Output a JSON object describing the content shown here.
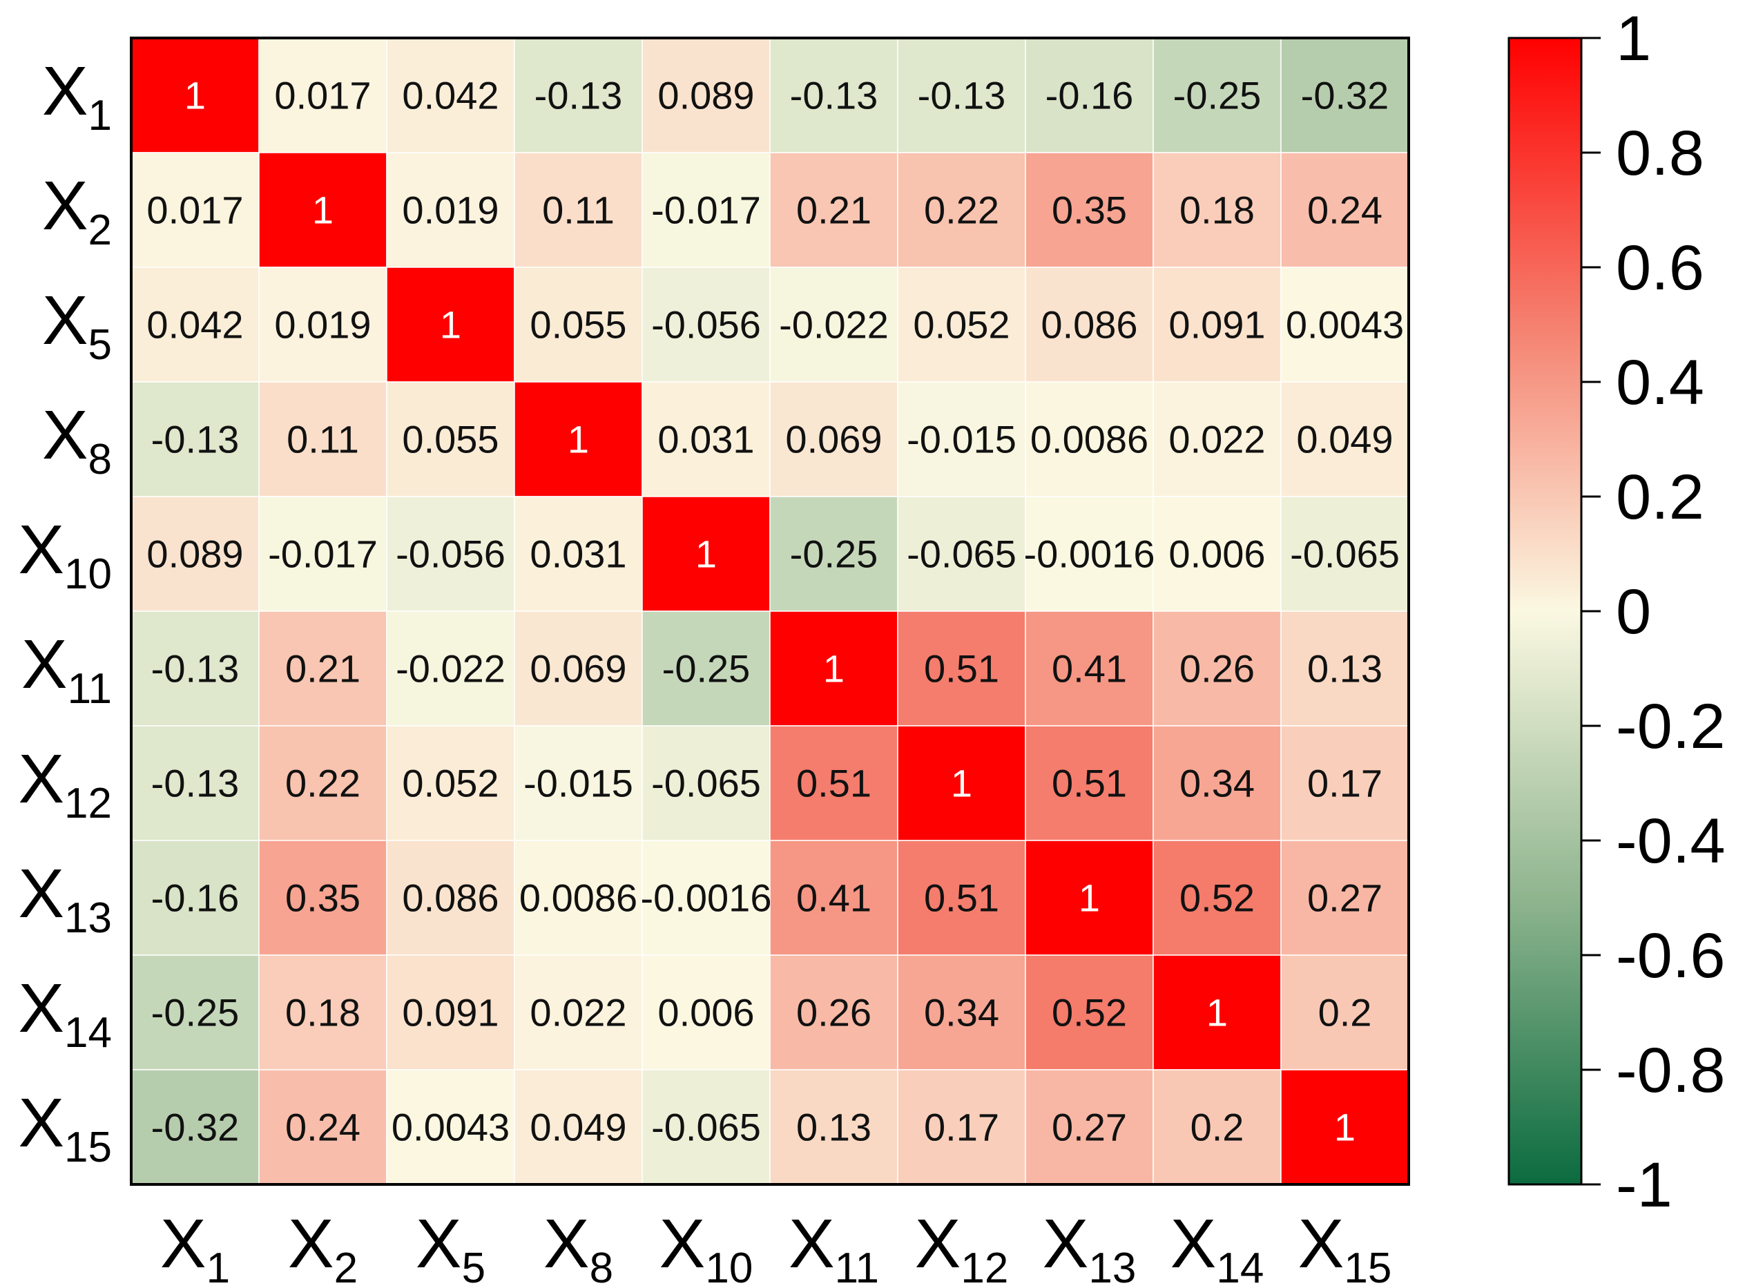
{
  "chart_data": {
    "type": "heatmap",
    "title": "",
    "xlabel": "",
    "ylabel": "",
    "labels": [
      {
        "base": "X",
        "sub": "1"
      },
      {
        "base": "X",
        "sub": "2"
      },
      {
        "base": "X",
        "sub": "5"
      },
      {
        "base": "X",
        "sub": "8"
      },
      {
        "base": "X",
        "sub": "10"
      },
      {
        "base": "X",
        "sub": "11"
      },
      {
        "base": "X",
        "sub": "12"
      },
      {
        "base": "X",
        "sub": "13"
      },
      {
        "base": "X",
        "sub": "14"
      },
      {
        "base": "X",
        "sub": "15"
      }
    ],
    "matrix": [
      [
        1,
        0.017,
        0.042,
        -0.13,
        0.089,
        -0.13,
        -0.13,
        -0.16,
        -0.25,
        -0.32
      ],
      [
        0.017,
        1,
        0.019,
        0.11,
        -0.017,
        0.21,
        0.22,
        0.35,
        0.18,
        0.24
      ],
      [
        0.042,
        0.019,
        1,
        0.055,
        -0.056,
        -0.022,
        0.052,
        0.086,
        0.091,
        0.0043
      ],
      [
        -0.13,
        0.11,
        0.055,
        1,
        0.031,
        0.069,
        -0.015,
        0.0086,
        0.022,
        0.049
      ],
      [
        0.089,
        -0.017,
        -0.056,
        0.031,
        1,
        -0.25,
        -0.065,
        -0.0016,
        0.006,
        -0.065
      ],
      [
        -0.13,
        0.21,
        -0.022,
        0.069,
        -0.25,
        1,
        0.51,
        0.41,
        0.26,
        0.13
      ],
      [
        -0.13,
        0.22,
        0.052,
        -0.015,
        -0.065,
        0.51,
        1,
        0.51,
        0.34,
        0.17
      ],
      [
        -0.16,
        0.35,
        0.086,
        0.0086,
        -0.0016,
        0.41,
        0.51,
        1,
        0.52,
        0.27
      ],
      [
        -0.25,
        0.18,
        0.091,
        0.022,
        0.006,
        0.26,
        0.34,
        0.52,
        1,
        0.2
      ],
      [
        -0.32,
        0.24,
        0.0043,
        0.049,
        -0.065,
        0.13,
        0.17,
        0.27,
        0.2,
        1
      ]
    ],
    "cell_text": [
      [
        "1",
        "0.017",
        "0.042",
        "-0.13",
        "0.089",
        "-0.13",
        "-0.13",
        "-0.16",
        "-0.25",
        "-0.32"
      ],
      [
        "0.017",
        "1",
        "0.019",
        "0.11",
        "-0.017",
        "0.21",
        "0.22",
        "0.35",
        "0.18",
        "0.24"
      ],
      [
        "0.042",
        "0.019",
        "1",
        "0.055",
        "-0.056",
        "-0.022",
        "0.052",
        "0.086",
        "0.091",
        "0.0043"
      ],
      [
        "-0.13",
        "0.11",
        "0.055",
        "1",
        "0.031",
        "0.069",
        "-0.015",
        "0.0086",
        "0.022",
        "0.049"
      ],
      [
        "0.089",
        "-0.017",
        "-0.056",
        "0.031",
        "1",
        "-0.25",
        "-0.065",
        "-0.0016",
        "0.006",
        "-0.065"
      ],
      [
        "-0.13",
        "0.21",
        "-0.022",
        "0.069",
        "-0.25",
        "1",
        "0.51",
        "0.41",
        "0.26",
        "0.13"
      ],
      [
        "-0.13",
        "0.22",
        "0.052",
        "-0.015",
        "-0.065",
        "0.51",
        "1",
        "0.51",
        "0.34",
        "0.17"
      ],
      [
        "-0.16",
        "0.35",
        "0.086",
        "0.0086",
        "-0.0016",
        "0.41",
        "0.51",
        "1",
        "0.52",
        "0.27"
      ],
      [
        "-0.25",
        "0.18",
        "0.091",
        "0.022",
        "0.006",
        "0.26",
        "0.34",
        "0.52",
        "1",
        "0.2"
      ],
      [
        "-0.32",
        "0.24",
        "0.0043",
        "0.049",
        "-0.065",
        "0.13",
        "0.17",
        "0.27",
        "0.2",
        "1"
      ]
    ],
    "colorbar": {
      "range": [
        -1,
        1
      ],
      "ticks": [
        1,
        0.8,
        0.6,
        0.4,
        0.2,
        0,
        -0.2,
        -0.4,
        -0.6,
        -0.8,
        -1
      ],
      "tick_labels": [
        "1",
        "0.8",
        "0.6",
        "0.4",
        "0.2",
        "0",
        "-0.2",
        "-0.4",
        "-0.6",
        "-0.8",
        "-1"
      ],
      "color_stops": [
        {
          "value": -1,
          "color": "#0b6b3f"
        },
        {
          "value": -0.5,
          "color": "#8fb58f"
        },
        {
          "value": 0,
          "color": "#fbf8e2"
        },
        {
          "value": 0.5,
          "color": "#f5806f"
        },
        {
          "value": 1,
          "color": "#ff0000"
        }
      ]
    },
    "legend_position": "right",
    "grid": true
  }
}
